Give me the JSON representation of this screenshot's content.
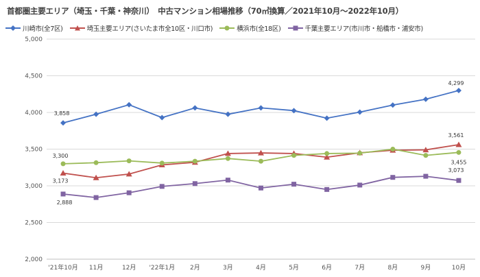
{
  "chart_data": {
    "type": "line",
    "title": "首都圏主要エリア（埼玉・千葉・神奈川）　中古マンション相場推移（70㎡換算／2021年10月～2022年10月）",
    "xlabel": "",
    "ylabel": "",
    "ylim": [
      2000,
      5000
    ],
    "yticks": [
      "2,000",
      "2,500",
      "3,000",
      "3,500",
      "4,000",
      "4,500",
      "5,000"
    ],
    "ytick_values": [
      2000,
      2500,
      3000,
      3500,
      4000,
      4500,
      5000
    ],
    "categories": [
      "'21年10月",
      "11月",
      "12月",
      "'22年1月",
      "2月",
      "3月",
      "4月",
      "5月",
      "6月",
      "7月",
      "8月",
      "9月",
      "10月"
    ],
    "grid": true,
    "legend_position": "top",
    "series": [
      {
        "name": "川崎市(全7区)",
        "color": "#4472C4",
        "marker": "diamond",
        "values": [
          3858,
          3975,
          4105,
          3930,
          4062,
          3975,
          4062,
          4025,
          3922,
          4005,
          4100,
          4180,
          4299
        ],
        "labels": {
          "0": "3,858",
          "12": "4,299"
        }
      },
      {
        "name": "埼玉主要エリア(さいたま市全10区・川口市)",
        "color": "#C0504D",
        "marker": "triangle",
        "values": [
          3173,
          3110,
          3160,
          3285,
          3320,
          3440,
          3448,
          3440,
          3390,
          3450,
          3485,
          3490,
          3561
        ],
        "labels": {
          "0": "3,173",
          "12": "3,561"
        }
      },
      {
        "name": "横浜市(全18区)",
        "color": "#9BBB59",
        "marker": "circle",
        "values": [
          3300,
          3315,
          3340,
          3310,
          3335,
          3372,
          3335,
          3415,
          3440,
          3445,
          3500,
          3415,
          3455
        ],
        "labels": {
          "0": "3,300",
          "12": "3,455"
        }
      },
      {
        "name": "千葉主要エリア(市川市・船橋市・浦安市)",
        "color": "#8064A2",
        "marker": "square",
        "values": [
          2888,
          2840,
          2905,
          2992,
          3030,
          3078,
          2970,
          3022,
          2950,
          3010,
          3115,
          3130,
          3073
        ],
        "labels": {
          "0": "2,888",
          "12": "3,073"
        }
      }
    ]
  }
}
